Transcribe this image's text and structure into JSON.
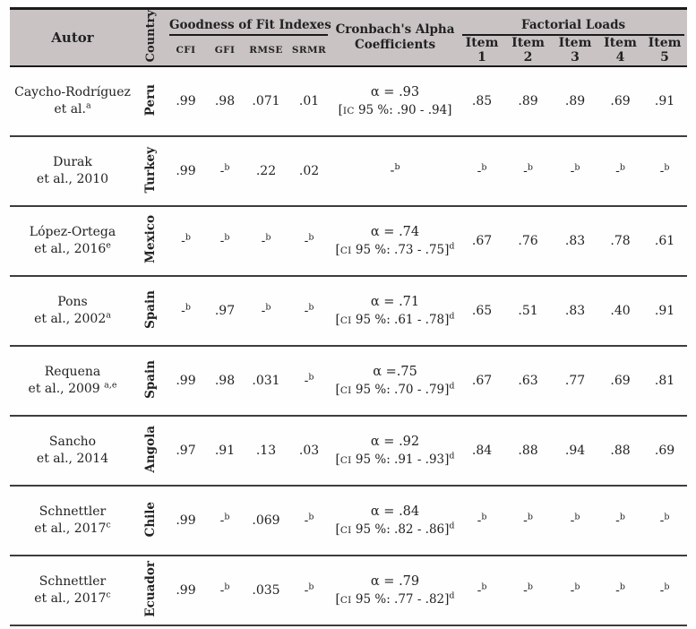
{
  "table": {
    "header": {
      "autor": "Autor",
      "country": "Country",
      "gof_group": "Goodness of Fit Indexes",
      "gof_cols": [
        "CFI",
        "GFI",
        "RMSE",
        "SRMR"
      ],
      "cronbach": "Cronbach's Alpha Coefficients",
      "factorial_group": "Factorial Loads",
      "item_cols": [
        "Item 1",
        "Item 2",
        "Item 3",
        "Item 4",
        "Item 5"
      ]
    },
    "rows": [
      {
        "author": "Caycho-Rodríguez\net al.^a",
        "country": "Peru",
        "fit": [
          ".99",
          ".98",
          ".071",
          ".01"
        ],
        "alpha": {
          "main": "α = .93",
          "ci": "[~IC~ 95 %: .90 - .94]"
        },
        "items": [
          ".85",
          ".89",
          ".89",
          ".69",
          ".91"
        ]
      },
      {
        "author": "Durak\net al., 2010",
        "country": "Turkey",
        "fit": [
          ".99",
          "-^b",
          ".22",
          ".02"
        ],
        "alpha": {
          "main": "-^b",
          "ci": ""
        },
        "items": [
          "-^b",
          "-^b",
          "-^b",
          "-^b",
          "-^b"
        ]
      },
      {
        "author": "López-Ortega\net al., 2016^e",
        "country": "Mexico",
        "fit": [
          "-^b",
          "-^b",
          "-^b",
          "-^b"
        ],
        "alpha": {
          "main": "α = .74",
          "ci": "[~CI~ 95 %: .73 - .75]^d"
        },
        "items": [
          ".67",
          ".76",
          ".83",
          ".78",
          ".61"
        ]
      },
      {
        "author": "Pons\net al., 2002^a",
        "country": "Spain",
        "fit": [
          "-^b",
          ".97",
          "-^b",
          "-^b"
        ],
        "alpha": {
          "main": "α = .71",
          "ci": "[~CI~ 95 %: .61 - .78]^d"
        },
        "items": [
          ".65",
          ".51",
          ".83",
          ".40",
          ".91"
        ]
      },
      {
        "author": "Requena\net al., 2009 ^a,e",
        "country": "Spain",
        "fit": [
          ".99",
          ".98",
          ".031",
          "-^b"
        ],
        "alpha": {
          "main": "α =.75",
          "ci": "[~CI~ 95 %: .70 - .79]^d"
        },
        "items": [
          ".67",
          ".63",
          ".77",
          ".69",
          ".81"
        ]
      },
      {
        "author": "Sancho\net al., 2014",
        "country": "Angola",
        "fit": [
          ".97",
          ".91",
          ".13",
          ".03"
        ],
        "alpha": {
          "main": "α = .92",
          "ci": "[~CI~ 95 %: .91 - .93]^d"
        },
        "items": [
          ".84",
          ".88",
          ".94",
          ".88",
          ".69"
        ]
      },
      {
        "author": "Schnettler\net al., 2017^c",
        "country": "Chile",
        "fit": [
          ".99",
          "-^b",
          ".069",
          "-^b"
        ],
        "alpha": {
          "main": "α = .84",
          "ci": "[~CI~ 95 %: .82 - .86]^d"
        },
        "items": [
          "-^b",
          "-^b",
          "-^b",
          "-^b",
          "-^b"
        ]
      },
      {
        "author": "Schnettler\net al., 2017^c",
        "country": "Ecuador",
        "fit": [
          ".99",
          "-^b",
          ".035",
          "-^b"
        ],
        "alpha": {
          "main": "α = .79",
          "ci": "[~CI~ 95 %: .77 - .82]^d"
        },
        "items": [
          "-^b",
          "-^b",
          "-^b",
          "-^b",
          "-^b"
        ]
      }
    ]
  },
  "colors": {
    "header_bg": "#c9c3c4",
    "rule_dark": "#1b1b1b",
    "rule_row": "#3d3d3d",
    "text": "#222222"
  }
}
